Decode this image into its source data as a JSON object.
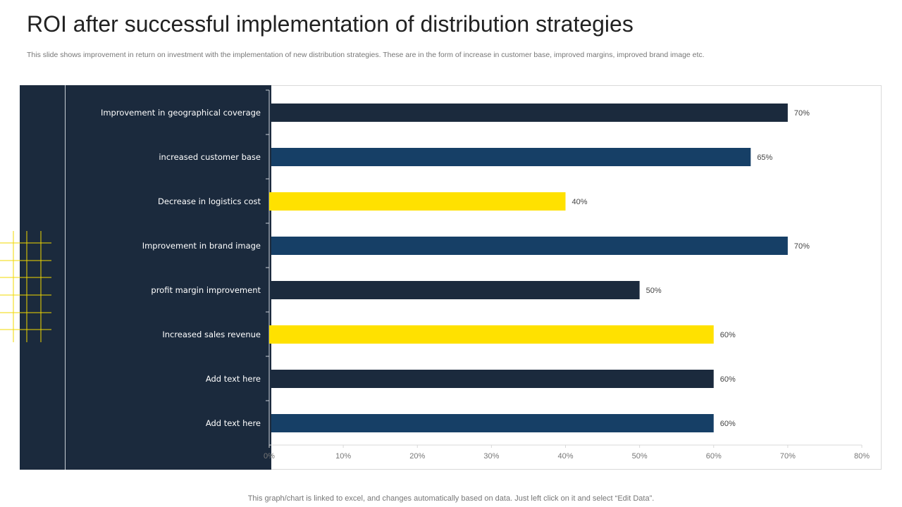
{
  "header": {
    "title": "ROI after successful implementation of distribution strategies",
    "subtitle": "This slide shows improvement in return on investment with the implementation of new distribution strategies. These are in the form of increase in customer base, improved margins, improved brand image etc."
  },
  "footer": {
    "note": "This graph/chart is linked to excel,  and changes automatically based on data. Just left click on it and select “Edit Data”."
  },
  "colors": {
    "dark": "#1b2a3d",
    "blue": "#163f66",
    "yellow": "#ffe100"
  },
  "chart_data": {
    "type": "bar",
    "orientation": "horizontal",
    "categories": [
      "Improvement in geographical coverage",
      "increased customer base",
      "Decrease in logistics cost",
      "Improvement in brand image",
      "profit margin improvement",
      "Increased sales revenue",
      "Add text here",
      "Add text here"
    ],
    "values": [
      70,
      65,
      40,
      70,
      50,
      60,
      60,
      60
    ],
    "value_labels": [
      "70%",
      "65%",
      "40%",
      "70%",
      "50%",
      "60%",
      "60%",
      "60%"
    ],
    "bar_colors": [
      "dark",
      "blue",
      "yellow",
      "blue",
      "dark",
      "yellow",
      "dark",
      "blue"
    ],
    "xlim": [
      0,
      80
    ],
    "xticks": [
      "0%",
      "10%",
      "20%",
      "30%",
      "40%",
      "50%",
      "60%",
      "70%",
      "80%"
    ],
    "title": "",
    "xlabel": "",
    "ylabel": "",
    "grid": false
  }
}
